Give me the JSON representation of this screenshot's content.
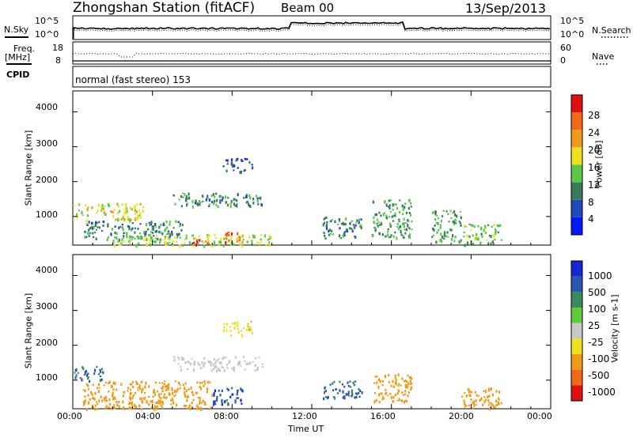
{
  "header": {
    "title": "Zhongshan Station (fitACF)",
    "beam": "Beam 00",
    "date": "13/Sep/2013"
  },
  "top_panels": {
    "nsky_label": "N.Sky",
    "nsearch_label": "N.Search",
    "nsky_ticks": [
      "10^5",
      "10^0"
    ],
    "nsearch_ticks": [
      "10^5",
      "10^0"
    ],
    "freq_label_1": "Freq.",
    "freq_label_2": "[MHz]",
    "freq_ticks": [
      "18",
      "8"
    ],
    "nave_label": "Nave",
    "nave_ticks": [
      "60",
      "0"
    ],
    "cpid_label": "CPID",
    "cpid_text": "normal (fast stereo) 153"
  },
  "axes": {
    "x_ticks": [
      "00:00",
      "04:00",
      "08:00",
      "12:00",
      "16:00",
      "20:00",
      "00:00"
    ],
    "xlabel": "Time UT",
    "y_ticks": [
      "4000",
      "3000",
      "2000",
      "1000"
    ],
    "ylabel": "Slant Range [km]"
  },
  "power_colorbar": {
    "label": "Power [dB]",
    "ticks": [
      "28",
      "24",
      "20",
      "16",
      "12",
      "8",
      "4"
    ],
    "colors": [
      "#0018ff",
      "#1f4ab8",
      "#3a7a5a",
      "#58c84a",
      "#f0e020",
      "#f09a1a",
      "#f06818",
      "#e01010"
    ]
  },
  "velocity_colorbar": {
    "label": "Velocity [m s-1]",
    "ticks": [
      "1000",
      "500",
      "100",
      "25",
      "-25",
      "-100",
      "-500",
      "-1000"
    ],
    "colors": [
      "#1428d2",
      "#2a58b0",
      "#3a8a5c",
      "#60cc3c",
      "#c8c8c8",
      "#f0e020",
      "#f09a1a",
      "#f06818",
      "#e01010"
    ]
  },
  "chart_data": [
    {
      "type": "heatmap",
      "title": "Power",
      "xlabel": "Time UT",
      "ylabel": "Slant Range [km]",
      "xlim": [
        0,
        24
      ],
      "ylim": [
        180,
        4600
      ],
      "colorbar_label": "Power [dB]",
      "clim": [
        0,
        32
      ],
      "patches": [
        {
          "x": [
            0.0,
            3.5
          ],
          "y": [
            900,
            1400
          ],
          "value": 18
        },
        {
          "x": [
            0.5,
            5.5
          ],
          "y": [
            350,
            900
          ],
          "value": 10
        },
        {
          "x": [
            2.0,
            10.0
          ],
          "y": [
            180,
            500
          ],
          "value": 16
        },
        {
          "x": [
            6.0,
            7.0
          ],
          "y": [
            180,
            400
          ],
          "value": 28
        },
        {
          "x": [
            7.5,
            8.5
          ],
          "y": [
            250,
            600
          ],
          "value": 26
        },
        {
          "x": [
            5.0,
            9.5
          ],
          "y": [
            1300,
            1700
          ],
          "value": 10
        },
        {
          "x": [
            7.5,
            9.0
          ],
          "y": [
            2300,
            2700
          ],
          "value": 6
        },
        {
          "x": [
            12.5,
            14.5
          ],
          "y": [
            400,
            1000
          ],
          "value": 10
        },
        {
          "x": [
            15.0,
            17.0
          ],
          "y": [
            400,
            1500
          ],
          "value": 12
        },
        {
          "x": [
            18.0,
            19.5
          ],
          "y": [
            300,
            1200
          ],
          "value": 12
        },
        {
          "x": [
            19.5,
            21.5
          ],
          "y": [
            200,
            800
          ],
          "value": 14
        }
      ]
    },
    {
      "type": "heatmap",
      "title": "Velocity",
      "xlabel": "Time UT",
      "ylabel": "Slant Range [km]",
      "xlim": [
        0,
        24
      ],
      "ylim": [
        180,
        4600
      ],
      "colorbar_label": "Velocity [m s-1]",
      "clim": [
        -1000,
        1000
      ],
      "patches": [
        {
          "x": [
            0.0,
            1.5
          ],
          "y": [
            1000,
            1400
          ],
          "value": 600
        },
        {
          "x": [
            0.5,
            7.0
          ],
          "y": [
            180,
            1000
          ],
          "value": -300
        },
        {
          "x": [
            7.0,
            8.5
          ],
          "y": [
            300,
            800
          ],
          "value": 800
        },
        {
          "x": [
            5.0,
            9.5
          ],
          "y": [
            1300,
            1700
          ],
          "value": 0
        },
        {
          "x": [
            7.5,
            9.0
          ],
          "y": [
            2300,
            2700
          ],
          "value": -60
        },
        {
          "x": [
            12.5,
            14.5
          ],
          "y": [
            500,
            1000
          ],
          "value": 600
        },
        {
          "x": [
            15.0,
            17.0
          ],
          "y": [
            400,
            1200
          ],
          "value": -300
        },
        {
          "x": [
            19.5,
            21.5
          ],
          "y": [
            200,
            800
          ],
          "value": -300
        }
      ]
    }
  ]
}
